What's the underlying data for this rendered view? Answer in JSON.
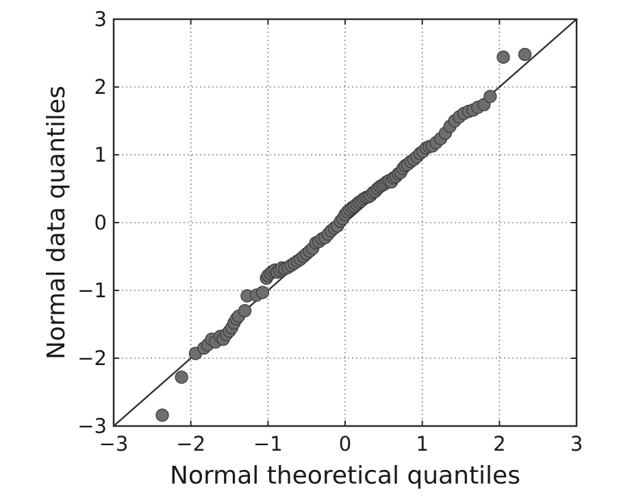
{
  "chart_data": {
    "type": "scatter",
    "title": "",
    "xlabel": "Normal theoretical quantiles",
    "ylabel": "Normal data quantiles",
    "xlim": [
      -3,
      3
    ],
    "ylim": [
      -3,
      3
    ],
    "xticks": [
      -3,
      -2,
      -1,
      0,
      1,
      2,
      3
    ],
    "yticks": [
      -3,
      -2,
      -1,
      0,
      1,
      2,
      3
    ],
    "xtick_labels": [
      "−3",
      "−2",
      "−1",
      "0",
      "1",
      "2",
      "3"
    ],
    "ytick_labels": [
      "−3",
      "−2",
      "−1",
      "0",
      "1",
      "2",
      "3"
    ],
    "grid": true,
    "reference_line": {
      "from": [
        -3,
        -3
      ],
      "to": [
        3,
        3
      ]
    },
    "marker_color": "#6e6e6e",
    "points": {
      "x": [
        -2.37,
        -2.12,
        -1.94,
        -1.83,
        -1.78,
        -1.73,
        -1.68,
        -1.62,
        -1.58,
        -1.54,
        -1.5,
        -1.47,
        -1.44,
        -1.41,
        -1.38,
        -1.3,
        -1.27,
        -1.15,
        -1.07,
        -1.02,
        -1.0,
        -0.97,
        -0.94,
        -0.91,
        -0.88,
        -0.85,
        -0.82,
        -0.78,
        -0.74,
        -0.7,
        -0.66,
        -0.62,
        -0.58,
        -0.54,
        -0.5,
        -0.46,
        -0.42,
        -0.38,
        -0.34,
        -0.3,
        -0.26,
        -0.22,
        -0.18,
        -0.14,
        -0.1,
        -0.06,
        -0.03,
        0.0,
        0.03,
        0.06,
        0.09,
        0.12,
        0.15,
        0.18,
        0.21,
        0.24,
        0.27,
        0.3,
        0.33,
        0.36,
        0.39,
        0.42,
        0.45,
        0.48,
        0.51,
        0.54,
        0.57,
        0.6,
        0.63,
        0.66,
        0.69,
        0.72,
        0.75,
        0.78,
        0.81,
        0.85,
        0.89,
        0.93,
        0.97,
        1.01,
        1.05,
        1.09,
        1.13,
        1.18,
        1.24,
        1.3,
        1.36,
        1.42,
        1.48,
        1.54,
        1.6,
        1.66,
        1.72,
        1.8,
        1.88,
        2.05,
        2.33
      ],
      "y": [
        -2.84,
        -2.28,
        -1.93,
        -1.85,
        -1.8,
        -1.72,
        -1.76,
        -1.68,
        -1.72,
        -1.65,
        -1.6,
        -1.55,
        -1.48,
        -1.42,
        -1.38,
        -1.3,
        -1.08,
        -1.07,
        -1.03,
        -0.82,
        -0.78,
        -0.75,
        -0.72,
        -0.7,
        -0.73,
        -0.7,
        -0.67,
        -0.68,
        -0.66,
        -0.63,
        -0.6,
        -0.57,
        -0.54,
        -0.5,
        -0.46,
        -0.42,
        -0.38,
        -0.3,
        -0.28,
        -0.24,
        -0.22,
        -0.17,
        -0.12,
        -0.08,
        -0.05,
        0.02,
        0.06,
        0.12,
        0.16,
        0.19,
        0.22,
        0.24,
        0.27,
        0.3,
        0.32,
        0.35,
        0.37,
        0.38,
        0.4,
        0.44,
        0.46,
        0.5,
        0.53,
        0.55,
        0.57,
        0.6,
        0.62,
        0.6,
        0.66,
        0.68,
        0.72,
        0.74,
        0.8,
        0.84,
        0.86,
        0.9,
        0.93,
        0.97,
        1.02,
        1.05,
        1.1,
        1.12,
        1.13,
        1.18,
        1.24,
        1.32,
        1.42,
        1.5,
        1.56,
        1.61,
        1.64,
        1.66,
        1.7,
        1.74,
        1.86,
        2.44,
        2.48
      ]
    }
  }
}
